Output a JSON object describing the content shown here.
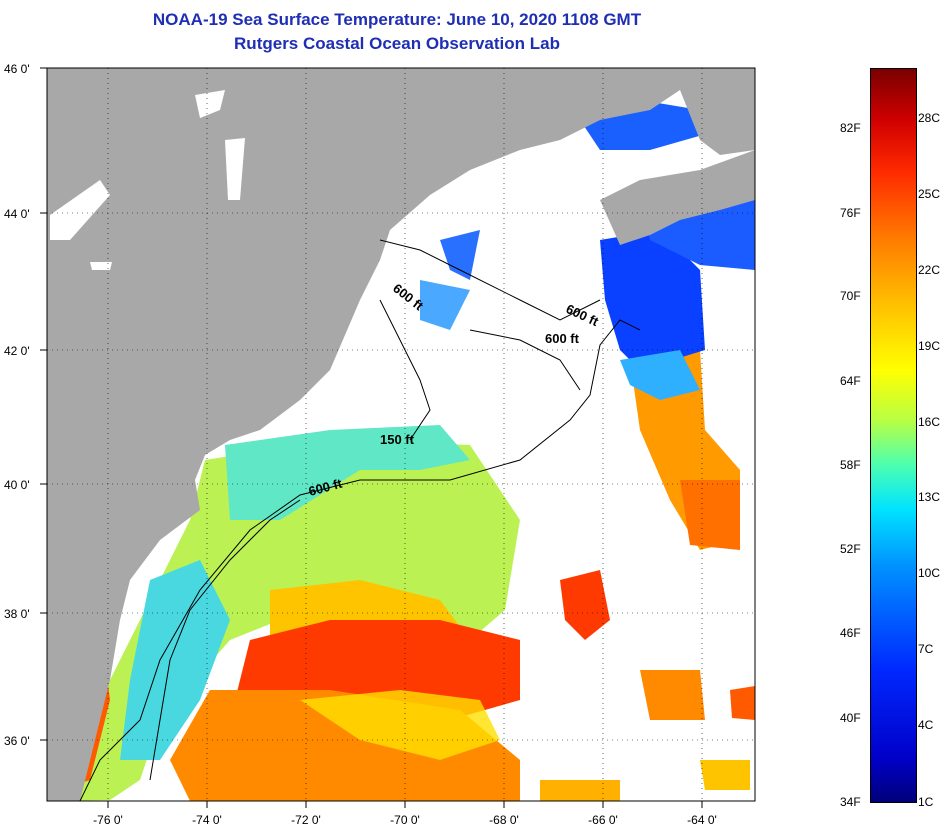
{
  "title_line1": "NOAA-19 Sea Surface Temperature:  June 10, 2020 1108 GMT",
  "title_line2": "Rutgers Coastal Ocean Observation Lab",
  "lat_labels": [
    "46 0'",
    "44 0'",
    "42 0'",
    "40 0'",
    "38 0'",
    "36 0'"
  ],
  "lon_labels": [
    "-76 0'",
    "-74 0'",
    "-72 0'",
    "-70 0'",
    "-68 0'",
    "-66 0'",
    "-64 0'"
  ],
  "contour_labels": [
    "600 ft",
    "600 ft",
    "600 ft",
    "150 ft",
    "600 ft"
  ],
  "colorbar": {
    "fahrenheit": [
      "82F",
      "76F",
      "70F",
      "64F",
      "58F",
      "52F",
      "46F",
      "40F",
      "34F"
    ],
    "celsius": [
      "28C",
      "25C",
      "22C",
      "19C",
      "16C",
      "13C",
      "10C",
      "7C",
      "4C",
      "1C"
    ]
  },
  "colors": {
    "title": "#1f2fb5",
    "land": "#a8a8a8",
    "ocean_nodata": "#ffffff"
  }
}
